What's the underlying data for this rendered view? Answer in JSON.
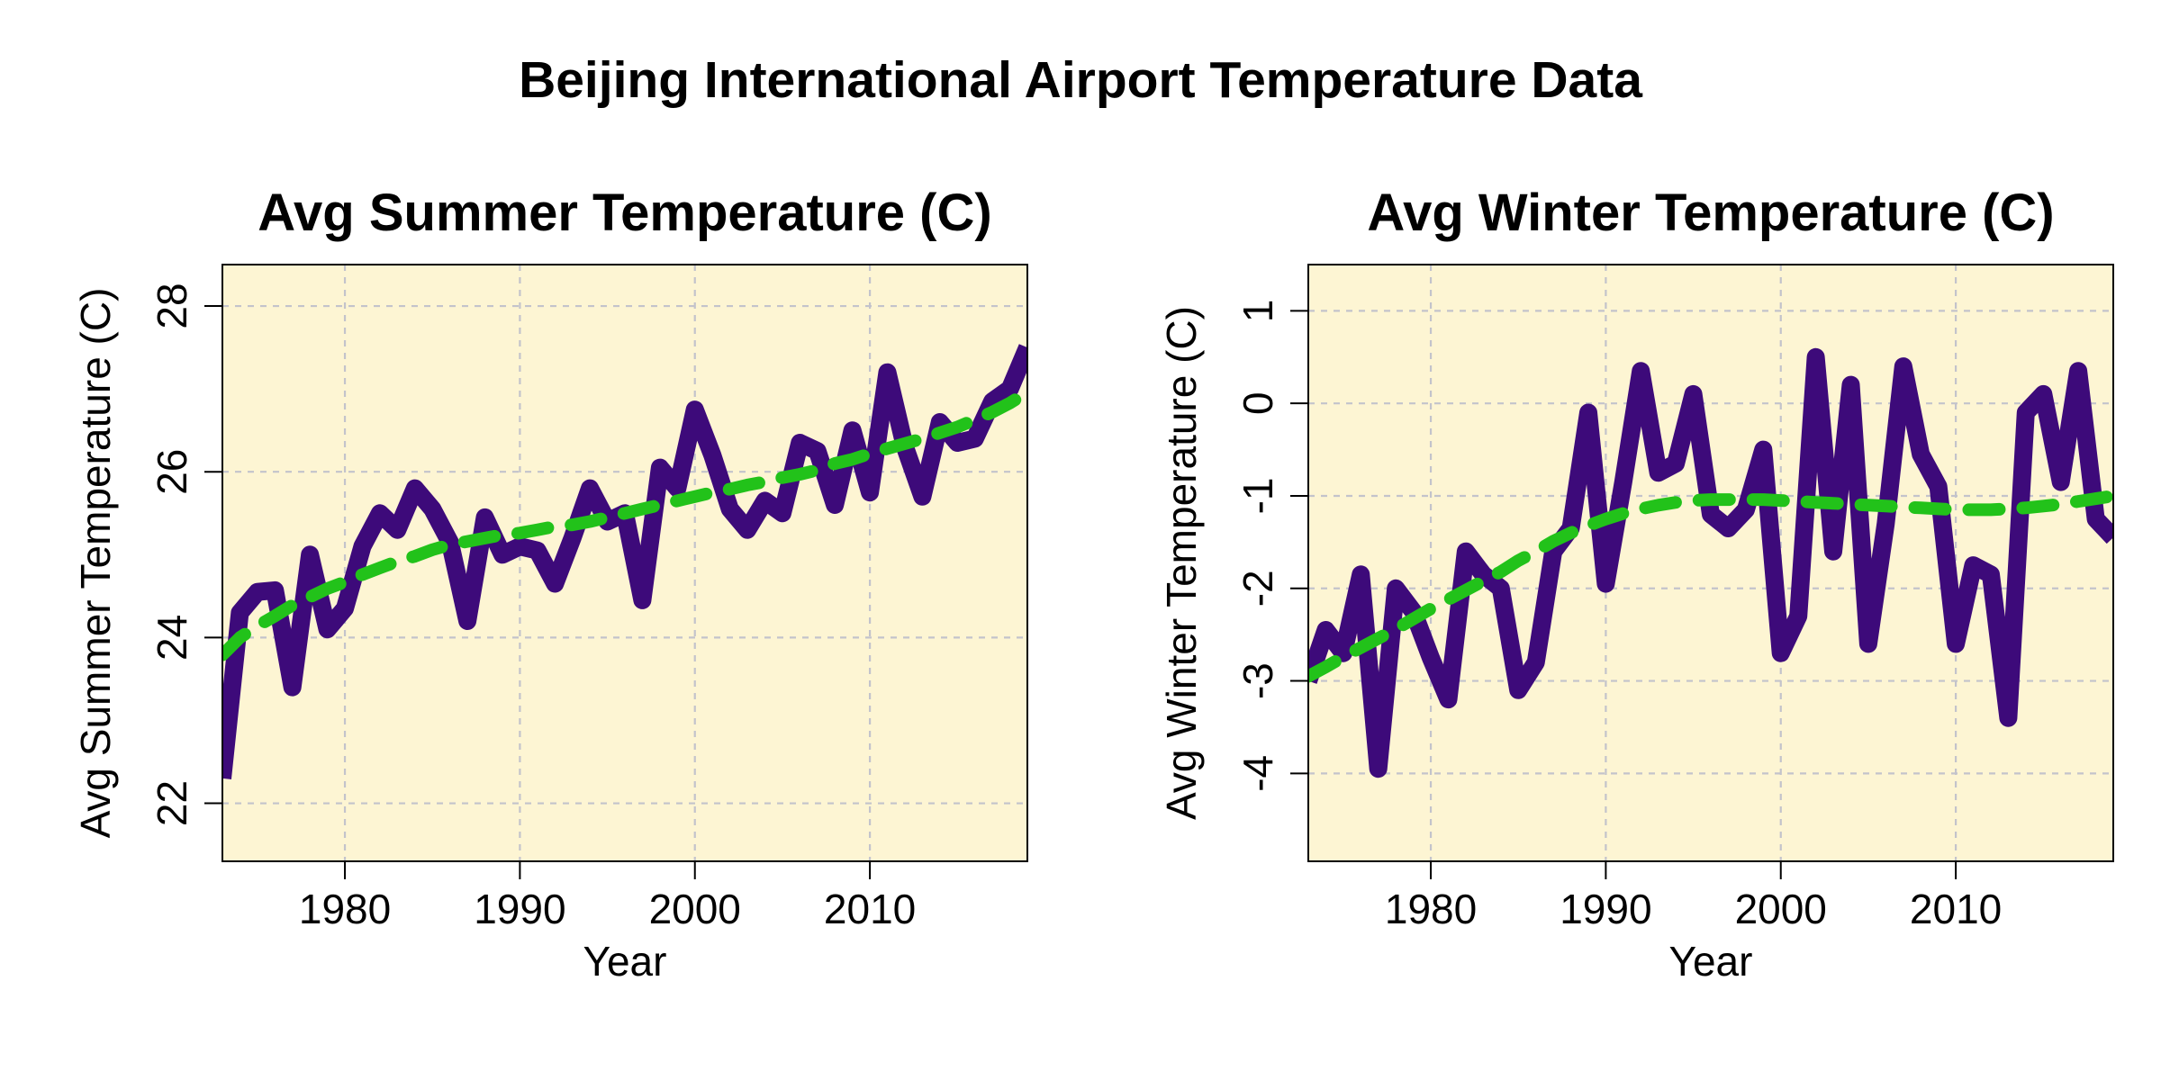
{
  "figure_title": "Beijing International Airport Temperature Data",
  "colors": {
    "panel_background": "#fdf5d3",
    "series_line": "#3d0a7a",
    "trend_line": "#22c21a",
    "grid": "#c3c3cb"
  },
  "chart_data": [
    {
      "type": "line",
      "title": "Avg Summer Temperature (C)",
      "xlabel": "Year",
      "ylabel": "Avg Summer Temperature (C)",
      "xlim": [
        1973,
        2019
      ],
      "ylim": [
        21.3,
        28.5
      ],
      "x_ticks": [
        1980,
        1990,
        2000,
        2010
      ],
      "y_ticks": [
        22,
        24,
        26,
        28
      ],
      "grid": true,
      "x": [
        1973,
        1974,
        1975,
        1976,
        1977,
        1978,
        1979,
        1980,
        1981,
        1982,
        1983,
        1984,
        1985,
        1986,
        1987,
        1988,
        1989,
        1990,
        1991,
        1992,
        1993,
        1994,
        1995,
        1996,
        1997,
        1998,
        1999,
        2000,
        2001,
        2002,
        2003,
        2004,
        2005,
        2006,
        2007,
        2008,
        2009,
        2010,
        2011,
        2012,
        2013,
        2014,
        2015,
        2016,
        2017,
        2018,
        2019
      ],
      "series": [
        {
          "style": "solid",
          "values": [
            22.3,
            24.3,
            24.55,
            24.57,
            23.4,
            25.0,
            24.1,
            24.35,
            25.1,
            25.5,
            25.3,
            25.8,
            25.55,
            25.15,
            24.2,
            25.45,
            25.0,
            25.1,
            25.05,
            24.65,
            25.2,
            25.8,
            25.4,
            25.5,
            24.45,
            26.05,
            25.8,
            26.75,
            26.2,
            25.55,
            25.3,
            25.65,
            25.5,
            26.35,
            26.25,
            25.6,
            26.5,
            25.75,
            27.2,
            26.3,
            25.7,
            26.6,
            26.35,
            26.4,
            26.85,
            27.0,
            27.5
          ]
        },
        {
          "style": "dashed",
          "values": [
            23.79,
            24.0,
            24.14,
            24.26,
            24.39,
            24.49,
            24.59,
            24.67,
            24.76,
            24.84,
            24.92,
            24.98,
            25.06,
            25.12,
            25.16,
            25.2,
            25.24,
            25.26,
            25.3,
            25.34,
            25.36,
            25.4,
            25.45,
            25.5,
            25.55,
            25.6,
            25.65,
            25.7,
            25.75,
            25.79,
            25.84,
            25.88,
            25.93,
            25.97,
            26.02,
            26.1,
            26.15,
            26.22,
            26.28,
            26.34,
            26.4,
            26.47,
            26.54,
            26.63,
            26.72,
            26.83,
            26.96
          ]
        }
      ]
    },
    {
      "type": "line",
      "title": "Avg Winter Temperature (C)",
      "xlabel": "Year",
      "ylabel": "Avg Winter Temperature (C)",
      "xlim": [
        1973,
        2019
      ],
      "ylim": [
        -4.95,
        1.5
      ],
      "x_ticks": [
        1980,
        1990,
        2000,
        2010
      ],
      "y_ticks": [
        -4,
        -3,
        -2,
        -1,
        0,
        1
      ],
      "grid": true,
      "x": [
        1973,
        1974,
        1975,
        1976,
        1977,
        1978,
        1979,
        1980,
        1981,
        1982,
        1983,
        1984,
        1985,
        1986,
        1987,
        1988,
        1989,
        1990,
        1991,
        1992,
        1993,
        1994,
        1995,
        1996,
        1997,
        1998,
        1999,
        2000,
        2001,
        2002,
        2003,
        2004,
        2005,
        2006,
        2007,
        2008,
        2009,
        2010,
        2011,
        2012,
        2013,
        2014,
        2015,
        2016,
        2017,
        2018,
        2019
      ],
      "series": [
        {
          "style": "solid",
          "values": [
            -3.0,
            -2.45,
            -2.7,
            -1.85,
            -3.95,
            -2.0,
            -2.25,
            -2.75,
            -3.2,
            -1.6,
            -1.85,
            -2.0,
            -3.1,
            -2.8,
            -1.6,
            -1.35,
            -0.1,
            -1.95,
            -0.85,
            0.35,
            -0.75,
            -0.65,
            0.1,
            -1.2,
            -1.35,
            -1.15,
            -0.5,
            -2.7,
            -2.3,
            0.5,
            -1.6,
            0.2,
            -2.6,
            -1.3,
            0.4,
            -0.55,
            -0.9,
            -2.6,
            -1.75,
            -1.85,
            -3.4,
            -0.1,
            0.1,
            -0.85,
            0.35,
            -1.25,
            -1.45
          ]
        },
        {
          "style": "dashed",
          "values": [
            -2.95,
            -2.85,
            -2.74,
            -2.64,
            -2.54,
            -2.44,
            -2.33,
            -2.22,
            -2.12,
            -2.02,
            -1.92,
            -1.82,
            -1.7,
            -1.6,
            -1.49,
            -1.4,
            -1.32,
            -1.25,
            -1.19,
            -1.14,
            -1.1,
            -1.07,
            -1.05,
            -1.04,
            -1.04,
            -1.04,
            -1.04,
            -1.05,
            -1.06,
            -1.07,
            -1.08,
            -1.09,
            -1.1,
            -1.11,
            -1.12,
            -1.13,
            -1.14,
            -1.15,
            -1.15,
            -1.15,
            -1.14,
            -1.13,
            -1.11,
            -1.09,
            -1.06,
            -1.03,
            -1.0
          ]
        }
      ]
    }
  ]
}
